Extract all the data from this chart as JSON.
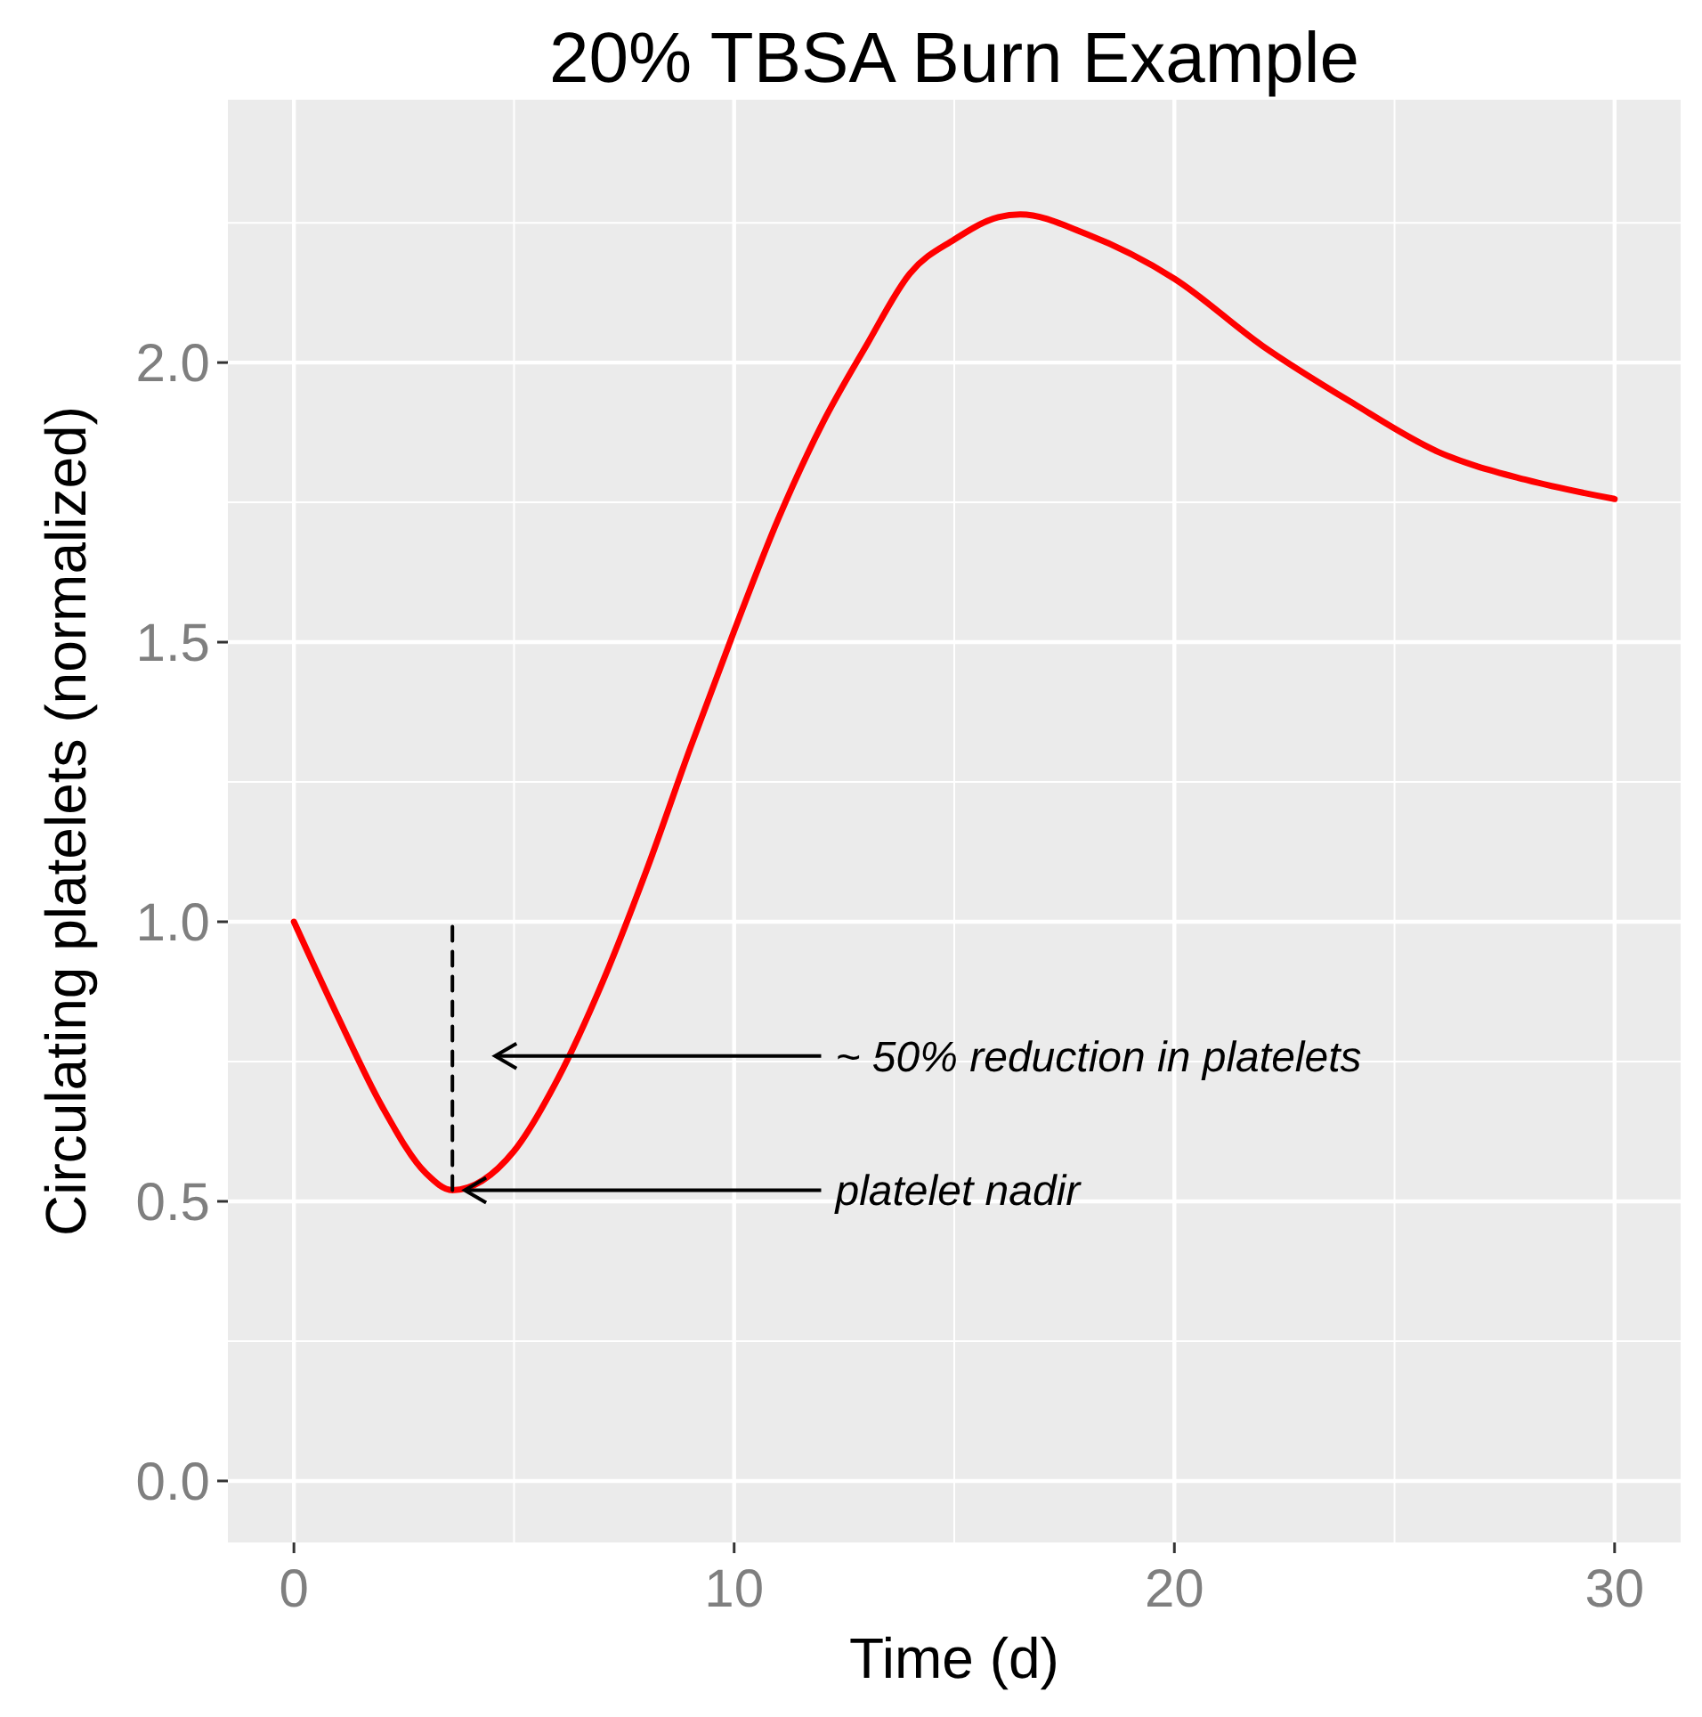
{
  "chart_data": {
    "type": "line",
    "title": "20% TBSA Burn Example",
    "xlabel": "Time (d)",
    "ylabel": "Circulating platelets (normalized)",
    "xlim": [
      -1.5,
      31.5
    ],
    "xticks": [
      0,
      10,
      20,
      30
    ],
    "ylim": [
      -0.11,
      2.47
    ],
    "yticks": [
      {
        "value": 0,
        "label": "0.0"
      },
      {
        "value": 0.5,
        "label": "0.5"
      },
      {
        "value": 1,
        "label": "1.0"
      },
      {
        "value": 1.5,
        "label": "1.5"
      },
      {
        "value": 2,
        "label": "2.0"
      }
    ],
    "grid": true,
    "series": [
      {
        "color": "#ff0000",
        "line_style": "solid",
        "x": [
          0,
          1,
          2,
          3,
          3.6,
          5,
          6,
          7,
          8,
          9,
          10,
          11,
          12,
          13,
          14,
          15,
          16,
          16.5,
          18,
          20,
          22,
          24,
          26,
          28,
          30
        ],
        "values": [
          1.0,
          0.83,
          0.67,
          0.55,
          0.52,
          0.59,
          0.72,
          0.89,
          1.09,
          1.31,
          1.52,
          1.72,
          1.89,
          2.03,
          2.16,
          2.22,
          2.26,
          2.265,
          2.23,
          2.15,
          2.03,
          1.93,
          1.84,
          1.79,
          1.756
        ]
      },
      {
        "color": "#000000",
        "line_style": "dashed",
        "x": [
          3.6,
          3.6
        ],
        "values": [
          0.52,
          1.0
        ]
      }
    ],
    "annotations": [
      "~ 50% reduction in platelets",
      {
        "text": "platelet nadir",
        "x": 3.8,
        "y": 0.52
      }
    ]
  }
}
